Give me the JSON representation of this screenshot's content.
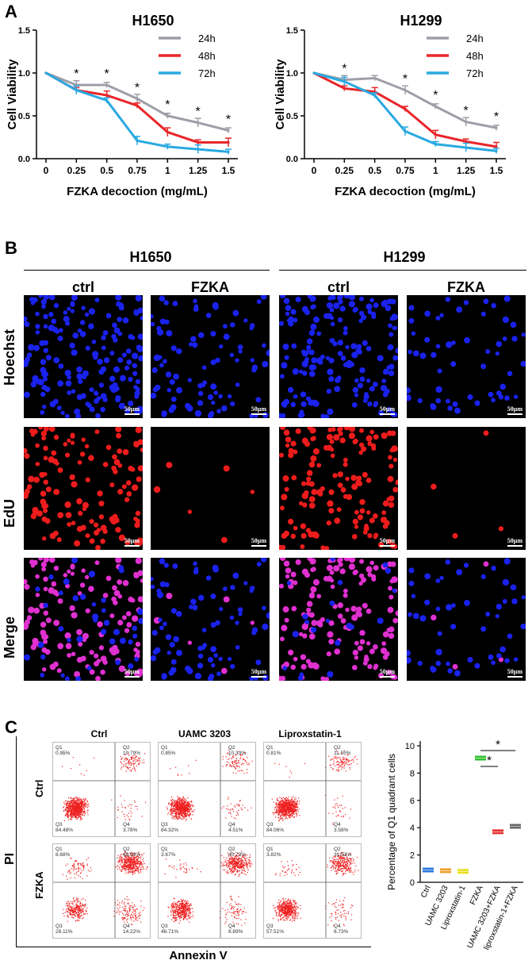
{
  "panelA": {
    "letter": "A",
    "y_axis_label": "Cell Viability",
    "x_axis_label": "FZKA decoction (mg/mL)",
    "significance_marker": "*"
  },
  "panelB": {
    "letter": "B",
    "cell_lines": [
      "H1650",
      "H1299"
    ],
    "conditions": [
      "ctrl",
      "FZKA",
      "ctrl",
      "FZKA"
    ],
    "rows": [
      "Hoechst",
      "EdU",
      "Merge"
    ],
    "scale_label": "50μm"
  },
  "panelC": {
    "letter": "C",
    "column_titles": [
      "Ctrl",
      "UAMC 3203",
      "Liproxstatin-1"
    ],
    "row_titles": [
      "Ctrl",
      "FZKA"
    ],
    "y_axis_label": "PI",
    "x_axis_label": "Annexin V",
    "quadrant_values": [
      [
        {
          "Q1": "0.95%",
          "Q2": "10.79%",
          "Q3": "84.48%",
          "Q4": "3.78%"
        },
        {
          "Q1": "0.85%",
          "Q2": "10.33%",
          "Q3": "84.32%",
          "Q4": "4.51%"
        },
        {
          "Q1": "0.81%",
          "Q2": "11.55%",
          "Q3": "84.06%",
          "Q4": "3.58%"
        }
      ],
      [
        {
          "Q1": "8.68%",
          "Q2": "48.99%",
          "Q3": "28.11%",
          "Q4": "14.22%"
        },
        {
          "Q1": "3.67%",
          "Q2": "40.73%",
          "Q3": "46.71%",
          "Q4": "8.89%"
        },
        {
          "Q1": "3.82%",
          "Q2": "31.93%",
          "Q3": "57.51%",
          "Q4": "6.73%"
        }
      ]
    ],
    "quadrant_names": [
      "Q1",
      "Q2",
      "Q3",
      "Q4"
    ]
  },
  "chart_data": [
    {
      "type": "line",
      "title": "H1650",
      "xlabel": "FZKA decoction (mg/mL)",
      "ylabel": "Cell Viability",
      "categories": [
        "0",
        "0.25",
        "0.5",
        "0.75",
        "1",
        "1.25",
        "1.5"
      ],
      "ylim": [
        0,
        1.5
      ],
      "yticks": [
        "0.0",
        "0.5",
        "1.0",
        "1.5"
      ],
      "legend_position": "top-right",
      "series": [
        {
          "name": "24h",
          "color": "#9e9ea8",
          "values": [
            1.0,
            0.86,
            0.86,
            0.7,
            0.5,
            0.42,
            0.33
          ]
        },
        {
          "name": "48h",
          "color": "#e8262a",
          "values": [
            1.0,
            0.8,
            0.74,
            0.62,
            0.31,
            0.19,
            0.19
          ]
        },
        {
          "name": "72h",
          "color": "#29a9e1",
          "values": [
            1.0,
            0.8,
            0.68,
            0.21,
            0.14,
            0.11,
            0.08
          ]
        }
      ],
      "significance": [
        "",
        "*",
        "*",
        "*",
        "*",
        "*",
        "*"
      ]
    },
    {
      "type": "line",
      "title": "H1299",
      "xlabel": "FZKA decoction (mg/mL)",
      "ylabel": "Cell Viability",
      "categories": [
        "0",
        "0.25",
        "0.5",
        "0.75",
        "1",
        "1.25",
        "1.5"
      ],
      "ylim": [
        0,
        1.5
      ],
      "yticks": [
        "0.0",
        "0.5",
        "1.0",
        "1.5"
      ],
      "legend_position": "top-right",
      "series": [
        {
          "name": "24h",
          "color": "#9e9ea8",
          "values": [
            1.0,
            0.92,
            0.94,
            0.8,
            0.61,
            0.43,
            0.36
          ]
        },
        {
          "name": "48h",
          "color": "#e8262a",
          "values": [
            1.0,
            0.82,
            0.78,
            0.58,
            0.28,
            0.2,
            0.14
          ]
        },
        {
          "name": "72h",
          "color": "#29a9e1",
          "values": [
            1.0,
            0.9,
            0.74,
            0.32,
            0.17,
            0.13,
            0.09
          ]
        }
      ],
      "significance": [
        "",
        "*",
        "",
        "*",
        "*",
        "*",
        "*"
      ]
    },
    {
      "type": "scatter",
      "ylabel": "Percentage of Q1 quadrant cells",
      "categories": [
        "Ctrl",
        "UAMC 3203",
        "Liproxstatin-1",
        "FZKA",
        "UAMC 3203+FZKA",
        "liproxstatin-1+FZKA"
      ],
      "values": [
        0.9,
        0.85,
        0.8,
        9.1,
        3.7,
        4.1
      ],
      "colors": [
        "#2b7be0",
        "#f0a030",
        "#e8e020",
        "#30c030",
        "#e83030",
        "#666666"
      ],
      "ylim": [
        0,
        10
      ],
      "yticks": [
        "0",
        "2",
        "4",
        "6",
        "8",
        "10"
      ],
      "significance": [
        {
          "from": 3,
          "to": 4,
          "label": "*"
        },
        {
          "from": 3,
          "to": 5,
          "label": "*"
        }
      ]
    }
  ]
}
